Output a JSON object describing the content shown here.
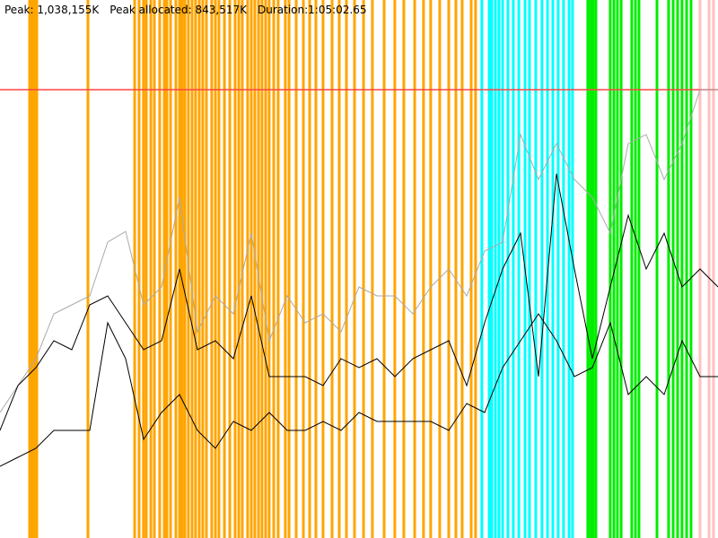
{
  "chart_data": {
    "type": "line",
    "annotations": [
      "Peak: 1,038,155K",
      "Peak allocated: 843,517K",
      "Duration:1:05:02.65"
    ],
    "xlim": [
      0,
      3902.65
    ],
    "ylim": [
      0,
      1245786
    ],
    "x": [
      0,
      97.6,
      195.1,
      292.7,
      390.3,
      487.8,
      585.4,
      683.0,
      780.5,
      878.1,
      975.7,
      1073.2,
      1170.8,
      1268.4,
      1365.9,
      1463.5,
      1561.1,
      1658.7,
      1756.2,
      1853.8,
      1951.3,
      2048.9,
      2146.5,
      2244.1,
      2341.6,
      2439.2,
      2536.8,
      2634.3,
      2731.9,
      2829.5,
      2927.0,
      3024.6,
      3122.2,
      3219.7,
      3317.3,
      3414.9,
      3512.4,
      3610.0,
      3707.6,
      3805.1,
      3902.65
    ],
    "series": [
      {
        "color": "#aaaaaa",
        "values": [
          290640,
          352920,
          415200,
          519000,
          539760,
          560520,
          685080,
          709992,
          539760,
          581280,
          788880,
          477480,
          560520,
          519000,
          705840,
          456720,
          560520,
          498240,
          519000,
          477480,
          581280,
          560520,
          560520,
          519000,
          581280,
          622800,
          560520,
          664320,
          685080,
          934200,
          830400,
          913440,
          830400,
          788880,
          705840,
          913440,
          934200,
          830400,
          913440,
          1038155,
          1038155
        ]
      },
      {
        "color": "#000000",
        "values": [
          249120,
          352920,
          394440,
          456720,
          435960,
          539760,
          560520,
          498240,
          435960,
          456720,
          622800,
          435960,
          456720,
          415200,
          560520,
          373680,
          373680,
          373680,
          352920,
          415200,
          394440,
          415200,
          373680,
          415200,
          435960,
          456720,
          352920,
          498240,
          622800,
          705840,
          373680,
          843517,
          622800,
          415200,
          581280,
          747360,
          622800,
          705840,
          581280,
          622800,
          581280
        ]
      },
      {
        "color": "#000000",
        "values": [
          166080,
          186840,
          207600,
          249120,
          249120,
          249120,
          498240,
          415200,
          228360,
          290640,
          332160,
          249120,
          207600,
          269880,
          249120,
          290640,
          249120,
          249120,
          269880,
          249120,
          290640,
          269880,
          269880,
          269880,
          269880,
          249120,
          311400,
          290640,
          394440,
          456720,
          519000,
          456720,
          373680,
          394440,
          498240,
          332160,
          373680,
          332160,
          456720,
          373680,
          373680
        ]
      }
    ],
    "reference_line": {
      "value": 1038155,
      "color": "#ff4444"
    },
    "event_groups": [
      {
        "color": "#ffa500",
        "x": [
          161,
          171,
          180,
          190,
          200,
          478,
          732,
          756,
          780,
          795,
          820,
          839,
          868,
          893,
          907,
          927,
          956,
          976,
          990,
          1005,
          1024,
          1044,
          1063,
          1083,
          1102,
          1122,
          1151,
          1171,
          1190,
          1220,
          1249,
          1278,
          1298,
          1317,
          1346,
          1366,
          1385,
          1405,
          1424,
          1444,
          1463,
          1488,
          1512,
          1551,
          1571,
          1610,
          1649,
          1683,
          1717,
          1756,
          1805,
          1844,
          1883,
          1927,
          1976,
          2024,
          2088,
          2146,
          2195,
          2254,
          2302,
          2341,
          2390,
          2439,
          2478,
          2512,
          2561,
          2585
        ]
      },
      {
        "color": "#00ffff",
        "x": [
          2619,
          2659,
          2673,
          2693,
          2712,
          2732,
          2761,
          2790,
          2820,
          2854,
          2878,
          2912,
          2946,
          2976,
          3005,
          3034,
          3063,
          3093,
          3112
        ]
      },
      {
        "color": "#00ee00",
        "x": [
          3195,
          3210,
          3224,
          3239,
          3317,
          3337,
          3356,
          3376,
          3434,
          3454,
          3473,
          3571,
          3634,
          3659,
          3683,
          3707,
          3732,
          3756
        ]
      },
      {
        "color": "#ffc0c0",
        "x": [
          3805,
          3854,
          3878
        ]
      }
    ]
  }
}
